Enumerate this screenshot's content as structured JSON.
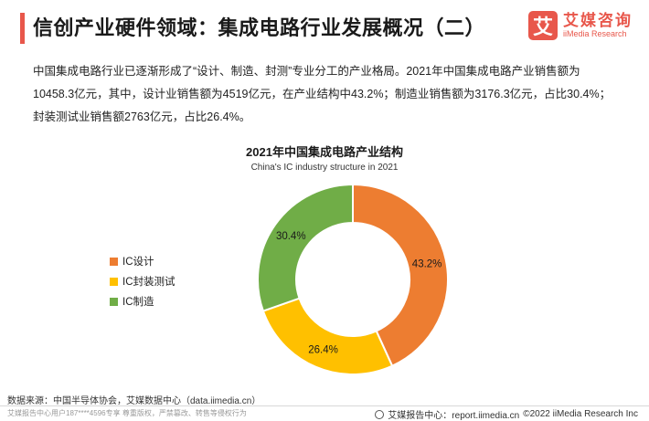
{
  "header": {
    "title": "信创产业硬件领域：集成电路行业发展概况（二）"
  },
  "brand": {
    "icon_glyph": "艾",
    "name_cn": "艾媒咨询",
    "name_en": "iiMedia Research"
  },
  "description": "中国集成电路行业已逐渐形成了“设计、制造、封测”专业分工的产业格局。2021年中国集成电路产业销售额为10458.3亿元，其中，设计业销售额为4519亿元，在产业结构中43.2%；制造业销售额为3176.3亿元，占比30.4%；封装测试业销售额2763亿元，占比26.4%。",
  "chart_data": {
    "type": "pie",
    "variant": "donut",
    "title": "2021年中国集成电路产业结构",
    "subtitle": "China's IC industry structure in 2021",
    "legend_position": "left",
    "slices": [
      {
        "name": "IC设计",
        "value": 43.2,
        "label": "43.2%",
        "color": "#ed7d31"
      },
      {
        "name": "IC封装测试",
        "value": 26.4,
        "label": "26.4%",
        "color": "#ffc000"
      },
      {
        "name": "IC制造",
        "value": 30.4,
        "label": "30.4%",
        "color": "#70ad47"
      }
    ]
  },
  "footer": {
    "source": "数据来源：中国半导体协会，艾媒数据中心（data.iimedia.cn）",
    "watermark": "艾媒报告中心用户187****4596专享 尊重版权，严禁篡改、转售等侵权行为",
    "report_center": "艾媒报告中心：report.iimedia.cn",
    "copyright": "©2022  iiMedia Research  Inc"
  }
}
